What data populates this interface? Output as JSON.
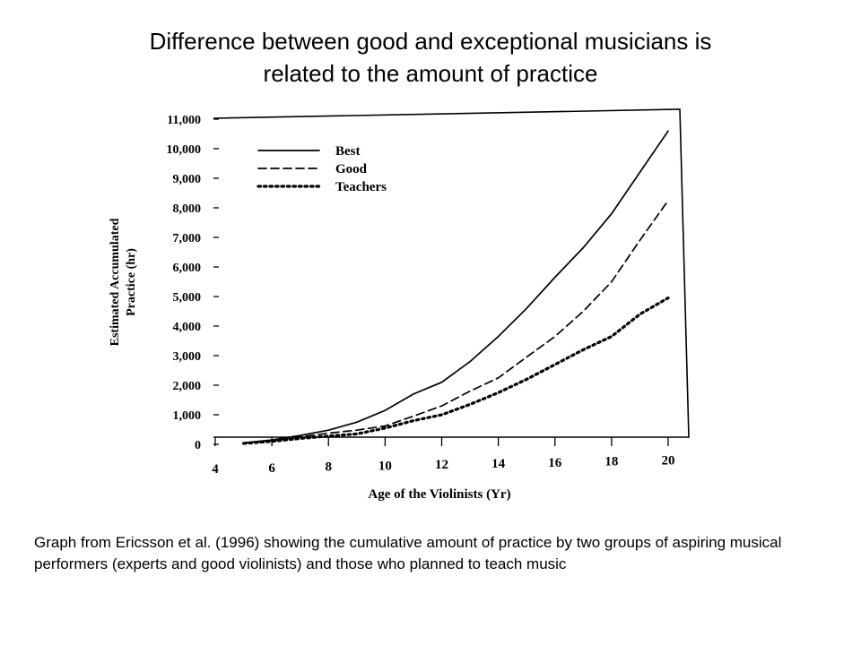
{
  "title": {
    "line1": "Difference between good and exceptional musicians is",
    "line2": "related to the  amount of practice"
  },
  "caption": "Graph from Ericsson et al. (1996) showing the cumulative amount of practice by two groups of aspiring musical performers (experts and good violinists) and those who planned to teach music",
  "chart_data": {
    "type": "line",
    "xlabel": "Age of the Violinists (Yr)",
    "ylabel": [
      "Estimated Accumulated",
      "Practice (hr)"
    ],
    "xlim": [
      4,
      20
    ],
    "ylim": [
      0,
      11000
    ],
    "x_ticks": [
      4,
      6,
      8,
      10,
      12,
      14,
      16,
      18,
      20
    ],
    "y_ticks": [
      0,
      1000,
      2000,
      3000,
      4000,
      5000,
      6000,
      7000,
      8000,
      9000,
      10000,
      11000
    ],
    "x_tick_labels": [
      "4",
      "6",
      "8",
      "10",
      "12",
      "14",
      "16",
      "18",
      "20"
    ],
    "y_tick_labels": [
      "0",
      "1,000",
      "2,000",
      "3,000",
      "4,000",
      "5,000",
      "6,000",
      "7,000",
      "8,000",
      "9,000",
      "10,000",
      "11,000"
    ],
    "legend_position": "top-left",
    "grid": false,
    "series": [
      {
        "name": "Best",
        "style": "solid",
        "x": [
          5,
          6,
          7,
          8,
          9,
          10,
          11,
          12,
          13,
          14,
          15,
          16,
          17,
          18,
          19,
          20
        ],
        "y": [
          50,
          150,
          300,
          480,
          750,
          1150,
          1700,
          2100,
          2800,
          3650,
          4600,
          5650,
          6650,
          7800,
          9200,
          10600
        ]
      },
      {
        "name": "Good",
        "style": "dashed",
        "x": [
          5,
          6,
          7,
          8,
          9,
          10,
          11,
          12,
          13,
          14,
          15,
          16,
          17,
          18,
          19,
          20
        ],
        "y": [
          50,
          120,
          250,
          380,
          480,
          620,
          950,
          1300,
          1800,
          2250,
          2950,
          3650,
          4500,
          5500,
          6900,
          8250
        ]
      },
      {
        "name": "Teachers",
        "style": "dotted",
        "x": [
          5,
          6,
          7,
          8,
          9,
          10,
          11,
          12,
          13,
          14,
          15,
          16,
          17,
          18,
          19,
          20
        ],
        "y": [
          30,
          100,
          200,
          280,
          350,
          550,
          800,
          1000,
          1350,
          1750,
          2200,
          2700,
          3200,
          3650,
          4400,
          4950
        ]
      }
    ]
  }
}
